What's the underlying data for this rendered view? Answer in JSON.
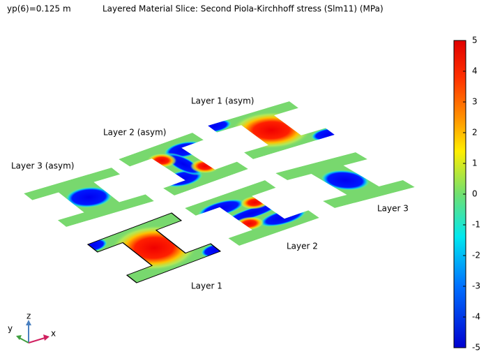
{
  "header": {
    "parameter": "yp(6)=0.125 m",
    "title": "Layered Material Slice: Second Piola-Kirchhoff stress (Slm11) (MPa)"
  },
  "colorbar": {
    "range": [
      -5,
      5
    ],
    "ticks": [
      5,
      4,
      3,
      2,
      1,
      0,
      -1,
      -2,
      -3,
      -4,
      -5
    ]
  },
  "labels": [
    "Layer 1 (asym)",
    "Layer 2 (asym)",
    "Layer 3 (asym)",
    "Layer 3",
    "Layer 2",
    "Layer 1"
  ],
  "axes": {
    "z": "z",
    "y": "y",
    "x": "x"
  }
}
